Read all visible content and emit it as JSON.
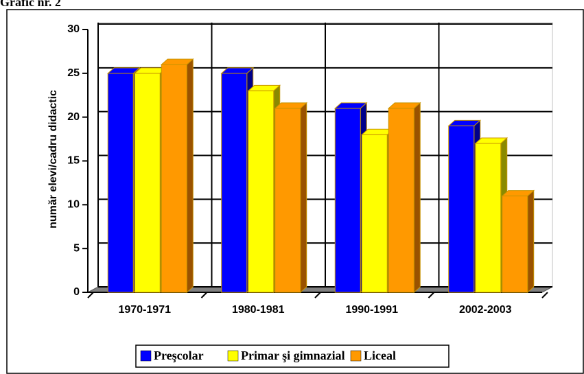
{
  "chart_data": {
    "type": "bar",
    "title": "Grafic nr. 2",
    "y_label": "număr elevi/cadru didactic",
    "categories": [
      "1970-1971",
      "1980-1981",
      "1990-1991",
      "2002-2003"
    ],
    "series": [
      {
        "name": "Preşcolar",
        "color": "#0000ff",
        "side": "#00008a",
        "values": [
          25,
          25,
          21,
          19
        ]
      },
      {
        "name": "Primar şi gimnazial",
        "color": "#ffff00",
        "side": "#8a8a00",
        "values": [
          25,
          23,
          18,
          17
        ]
      },
      {
        "name": "Liceal",
        "color": "#ff9900",
        "side": "#9a5200",
        "values": [
          26,
          21,
          21,
          11
        ]
      }
    ],
    "ylim": [
      0,
      30
    ],
    "yticks": [
      0,
      5,
      10,
      15,
      20,
      25,
      30
    ],
    "grid": true
  }
}
